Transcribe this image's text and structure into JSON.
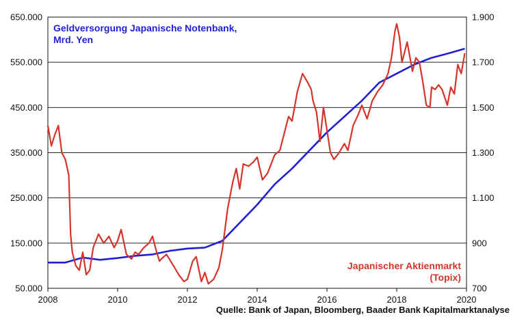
{
  "chart_data": {
    "type": "line",
    "x_range": [
      2008,
      2020
    ],
    "x_ticks": [
      "2008",
      "2010",
      "2012",
      "2014",
      "2016",
      "2018",
      "2020"
    ],
    "y_left": {
      "range": [
        50000,
        650000
      ],
      "ticks": [
        50000,
        150000,
        250000,
        350000,
        450000,
        550000,
        650000
      ],
      "tick_labels": [
        "50.000",
        "150.000",
        "250.000",
        "350.000",
        "450.000",
        "550.000",
        "650.000"
      ]
    },
    "y_right": {
      "range": [
        700,
        1900
      ],
      "ticks": [
        700,
        900,
        1100,
        1300,
        1500,
        1700,
        1900
      ],
      "tick_labels": [
        "700",
        "900",
        "1.100",
        "1.300",
        "1.500",
        "1.700",
        "1.900"
      ]
    },
    "grid": "horizontal",
    "series": [
      {
        "name": "Geldversorgung Japanische Notenbank, Mrd. Yen",
        "name_lines": [
          "Geldversorgung Japanische Notenbank,",
          "Mrd. Yen"
        ],
        "axis": "left",
        "color": "#1f1fd6",
        "x": [
          2008.0,
          2008.5,
          2009.0,
          2009.5,
          2010.0,
          2010.5,
          2011.0,
          2011.5,
          2012.0,
          2012.5,
          2013.0,
          2013.25,
          2013.5,
          2013.75,
          2014.0,
          2014.5,
          2015.0,
          2015.5,
          2016.0,
          2016.5,
          2017.0,
          2017.5,
          2018.0,
          2018.5,
          2019.0,
          2019.5,
          2019.95
        ],
        "values": [
          107000,
          107000,
          118000,
          113000,
          117000,
          122000,
          125000,
          133000,
          138000,
          140000,
          155000,
          175000,
          195000,
          215000,
          235000,
          280000,
          315000,
          355000,
          395000,
          430000,
          465000,
          505000,
          525000,
          545000,
          560000,
          570000,
          580000
        ]
      },
      {
        "name": "Japanischer Aktienmarkt (Topix)",
        "name_lines": [
          "Japanischer Aktienmarkt",
          "(Topix)"
        ],
        "axis": "right",
        "color": "#d6342a",
        "x": [
          2008.0,
          2008.1,
          2008.2,
          2008.3,
          2008.4,
          2008.5,
          2008.6,
          2008.65,
          2008.7,
          2008.8,
          2008.9,
          2009.0,
          2009.1,
          2009.2,
          2009.3,
          2009.45,
          2009.6,
          2009.75,
          2009.9,
          2010.0,
          2010.1,
          2010.25,
          2010.4,
          2010.5,
          2010.6,
          2010.75,
          2010.9,
          2011.0,
          2011.1,
          2011.2,
          2011.25,
          2011.4,
          2011.6,
          2011.75,
          2011.9,
          2012.0,
          2012.15,
          2012.25,
          2012.4,
          2012.5,
          2012.6,
          2012.75,
          2012.9,
          2013.0,
          2013.15,
          2013.3,
          2013.4,
          2013.5,
          2013.6,
          2013.75,
          2013.9,
          2014.0,
          2014.15,
          2014.3,
          2014.5,
          2014.65,
          2014.8,
          2014.9,
          2015.0,
          2015.15,
          2015.3,
          2015.45,
          2015.55,
          2015.6,
          2015.7,
          2015.8,
          2015.9,
          2016.0,
          2016.1,
          2016.2,
          2016.35,
          2016.5,
          2016.6,
          2016.75,
          2016.9,
          2017.0,
          2017.15,
          2017.3,
          2017.45,
          2017.6,
          2017.75,
          2017.85,
          2017.95,
          2018.0,
          2018.08,
          2018.15,
          2018.3,
          2018.45,
          2018.55,
          2018.65,
          2018.75,
          2018.85,
          2018.95,
          2019.0,
          2019.1,
          2019.2,
          2019.3,
          2019.45,
          2019.55,
          2019.65,
          2019.75,
          2019.85,
          2019.95
        ],
        "values": [
          1420,
          1330,
          1380,
          1420,
          1300,
          1270,
          1200,
          940,
          860,
          800,
          780,
          860,
          760,
          780,
          880,
          940,
          900,
          930,
          880,
          910,
          960,
          850,
          830,
          860,
          850,
          880,
          900,
          930,
          870,
          820,
          830,
          850,
          800,
          760,
          730,
          740,
          820,
          840,
          730,
          770,
          720,
          740,
          790,
          870,
          1050,
          1170,
          1230,
          1140,
          1250,
          1240,
          1260,
          1280,
          1180,
          1210,
          1290,
          1310,
          1400,
          1460,
          1440,
          1570,
          1650,
          1610,
          1580,
          1530,
          1480,
          1350,
          1500,
          1400,
          1300,
          1270,
          1300,
          1340,
          1310,
          1420,
          1470,
          1510,
          1450,
          1530,
          1570,
          1600,
          1650,
          1720,
          1840,
          1870,
          1810,
          1700,
          1790,
          1660,
          1720,
          1700,
          1610,
          1510,
          1500,
          1590,
          1580,
          1600,
          1580,
          1510,
          1590,
          1560,
          1690,
          1650,
          1740
        ]
      }
    ],
    "annotation": "Quelle: Bank of Japan, Bloomberg, Baader Bank Kapitalmarktanalyse"
  }
}
